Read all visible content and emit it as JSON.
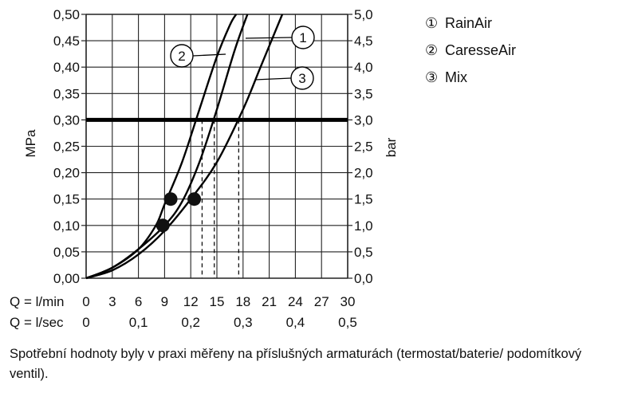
{
  "chart_data": {
    "type": "line",
    "ylabel": "MPa",
    "y2label": "bar",
    "ylim": [
      0,
      0.5
    ],
    "y_ticks": [
      "0,00",
      "0,05",
      "0,10",
      "0,15",
      "0,20",
      "0,25",
      "0,30",
      "0,35",
      "0,40",
      "0,45",
      "0,50"
    ],
    "y2_ticks": [
      "0,0",
      "0,5",
      "1,0",
      "1,5",
      "2,0",
      "2,5",
      "3,0",
      "3,5",
      "4,0",
      "4,5",
      "5,0"
    ],
    "x_rows": [
      {
        "label": "Q = l/min",
        "ticks": [
          "0",
          "3",
          "6",
          "9",
          "12",
          "15",
          "18",
          "21",
          "24",
          "27",
          "30"
        ],
        "values": [
          0,
          3,
          6,
          9,
          12,
          15,
          18,
          21,
          24,
          27,
          30
        ]
      },
      {
        "label": "Q = l/sec",
        "ticks": [
          "0",
          "0,1",
          "0,2",
          "0,3",
          "0,4",
          "0,5"
        ],
        "values": [
          0,
          6,
          12,
          18,
          24,
          30
        ]
      }
    ],
    "xlim": [
      0,
      30
    ],
    "reference_line": {
      "y": 0.3
    },
    "series": [
      {
        "id": "2",
        "points": [
          [
            0,
            0
          ],
          [
            3,
            0.02
          ],
          [
            6,
            0.055
          ],
          [
            8,
            0.1
          ],
          [
            9,
            0.14
          ],
          [
            11,
            0.22
          ],
          [
            13,
            0.32
          ],
          [
            15,
            0.42
          ],
          [
            16.5,
            0.48
          ],
          [
            17.2,
            0.5
          ]
        ],
        "marker": {
          "x": 9.7,
          "y": 0.15
        },
        "drop": {
          "x": 13.3,
          "y": 0.3
        }
      },
      {
        "id": "1",
        "points": [
          [
            0,
            0
          ],
          [
            3,
            0.02
          ],
          [
            6,
            0.055
          ],
          [
            9,
            0.1
          ],
          [
            11,
            0.145
          ],
          [
            13,
            0.22
          ],
          [
            15,
            0.32
          ],
          [
            17,
            0.43
          ],
          [
            18.5,
            0.5
          ]
        ],
        "marker": {
          "x": 8.8,
          "y": 0.1
        },
        "drop": {
          "x": 14.7,
          "y": 0.3
        }
      },
      {
        "id": "3",
        "points": [
          [
            0,
            0
          ],
          [
            3,
            0.015
          ],
          [
            6,
            0.045
          ],
          [
            9,
            0.09
          ],
          [
            12,
            0.15
          ],
          [
            15,
            0.22
          ],
          [
            18,
            0.32
          ],
          [
            20,
            0.4
          ],
          [
            22.5,
            0.5
          ]
        ],
        "marker": {
          "x": 12.4,
          "y": 0.15
        },
        "drop": {
          "x": 17.5,
          "y": 0.3
        }
      }
    ],
    "curve_callouts": [
      "1",
      "2",
      "3"
    ],
    "grid": true
  },
  "legend": [
    {
      "num": "①",
      "label": "RainAir"
    },
    {
      "num": "②",
      "label": "CaresseAir"
    },
    {
      "num": "③",
      "label": "Mix"
    }
  ],
  "caption": "Spotřební hodnoty byly v praxi měřeny na příslušných armaturách (termostat/baterie/ podomítkový ventil)."
}
